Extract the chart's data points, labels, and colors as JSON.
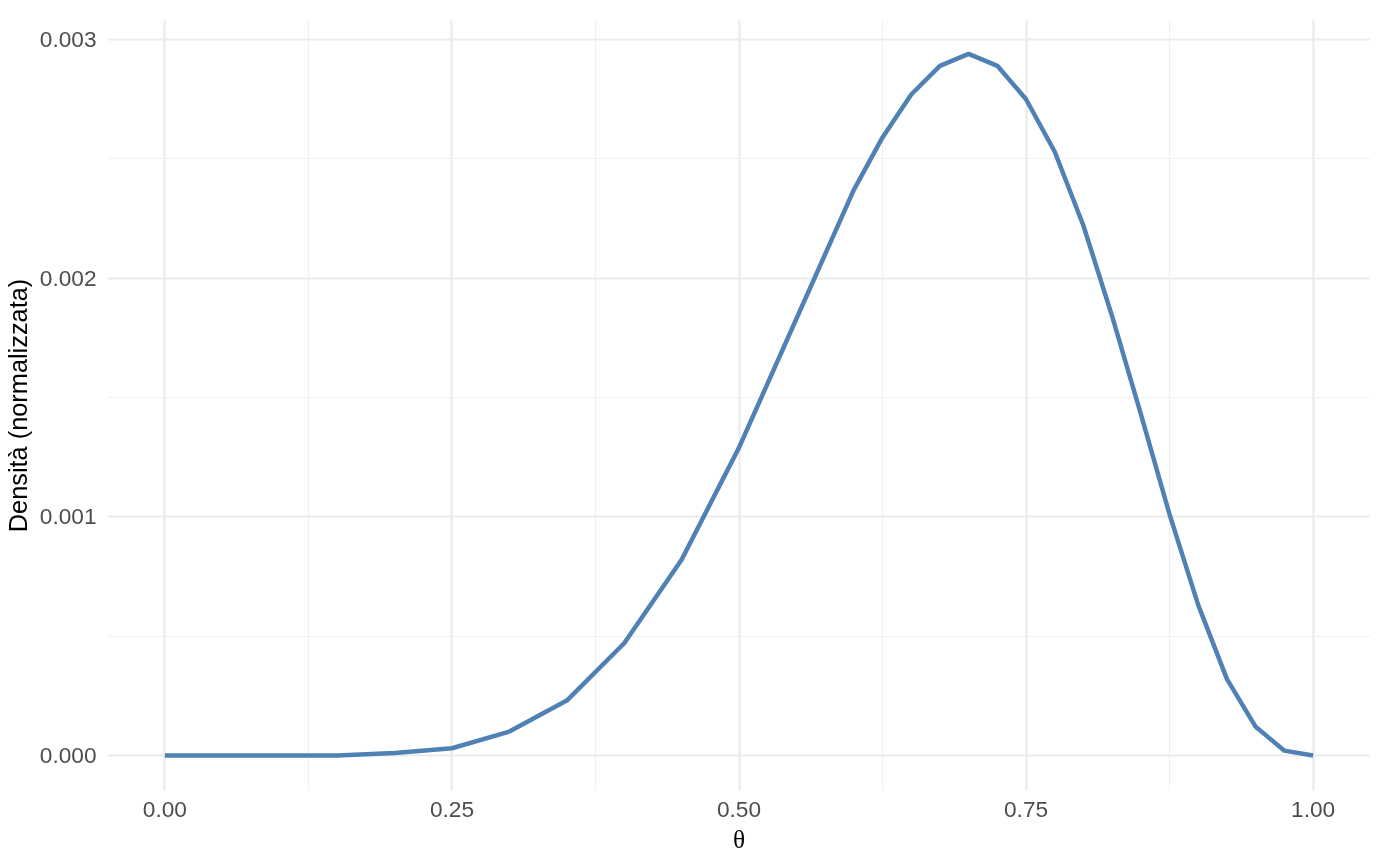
{
  "chart_data": {
    "type": "line",
    "xlabel": "θ",
    "ylabel": "Densità (normalizzata)",
    "x": [
      0,
      0.05,
      0.1,
      0.15,
      0.2,
      0.25,
      0.3,
      0.35,
      0.4,
      0.45,
      0.5,
      0.55,
      0.6,
      0.625,
      0.65,
      0.675,
      0.7,
      0.725,
      0.75,
      0.775,
      0.8,
      0.825,
      0.85,
      0.875,
      0.9,
      0.925,
      0.95,
      0.975,
      1.0
    ],
    "series": [
      {
        "color": "#4f81b4",
        "values": [
          0,
          0,
          0,
          0,
          1e-05,
          3e-05,
          0.0001,
          0.00023,
          0.00047,
          0.00082,
          0.00129,
          0.00183,
          0.00237,
          0.00259,
          0.00277,
          0.00289,
          0.00294,
          0.00289,
          0.00275,
          0.00253,
          0.00222,
          0.00184,
          0.00143,
          0.00101,
          0.00063,
          0.00032,
          0.00012,
          2e-05,
          0
        ]
      }
    ],
    "xlim": [
      -0.05,
      1.05
    ],
    "ylim": [
      -0.000147,
      0.00308
    ],
    "xticks": [
      {
        "value": 0,
        "label": "0.00"
      },
      {
        "value": 0.125,
        "label": null
      },
      {
        "value": 0.25,
        "label": "0.25"
      },
      {
        "value": 0.375,
        "label": null
      },
      {
        "value": 0.5,
        "label": "0.50"
      },
      {
        "value": 0.625,
        "label": null
      },
      {
        "value": 0.75,
        "label": "0.75"
      },
      {
        "value": 0.875,
        "label": null
      },
      {
        "value": 1,
        "label": "1.00"
      }
    ],
    "yticks": [
      {
        "value": 0,
        "label": "0.000"
      },
      {
        "value": 0.0005,
        "label": null
      },
      {
        "value": 0.001,
        "label": "0.001"
      },
      {
        "value": 0.0015,
        "label": null
      },
      {
        "value": 0.002,
        "label": "0.002"
      },
      {
        "value": 0.0025,
        "label": null
      },
      {
        "value": 0.003,
        "label": "0.003"
      }
    ],
    "grid": true,
    "line_style": "solid",
    "marker": "none"
  }
}
